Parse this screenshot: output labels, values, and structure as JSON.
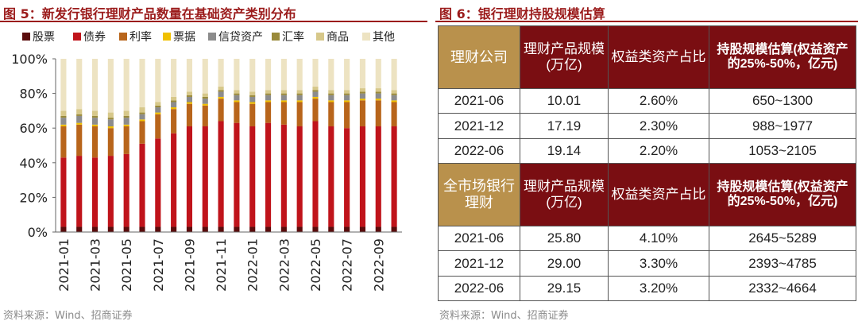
{
  "left_panel": {
    "title": "图 5：新发行银行理财产品数量在基础资产类别分布",
    "source": "资料来源：Wind、招商证券"
  },
  "right_panel": {
    "title": "图 6：银行理财持股规模估算",
    "source": "资料来源：Wind、招商证券",
    "table": {
      "groups": [
        {
          "header": [
            "理财公司",
            "理财产品规模(万亿)",
            "权益类资产占比",
            "持股规模估算(权益资产的25%-50%，亿元)"
          ],
          "rows": [
            [
              "2021-06",
              "10.01",
              "2.60%",
              "650~1300"
            ],
            [
              "2021-12",
              "17.19",
              "2.30%",
              "988~1977"
            ],
            [
              "2022-06",
              "19.14",
              "2.20%",
              "1053~2105"
            ]
          ]
        },
        {
          "header": [
            "全市场银行理财",
            "理财产品规模(万亿)",
            "权益类资产占比",
            "持股规模估算(权益资产的25%-50%，亿元)"
          ],
          "rows": [
            [
              "2021-06",
              "25.80",
              "4.10%",
              "2645~5289"
            ],
            [
              "2021-12",
              "29.00",
              "3.30%",
              "2393~4785"
            ],
            [
              "2022-06",
              "29.15",
              "3.20%",
              "2332~4664"
            ]
          ]
        }
      ]
    }
  },
  "chart_data": {
    "type": "bar",
    "stacked": true,
    "percent": true,
    "categories": [
      "2021-01",
      "2021-02",
      "2021-03",
      "2021-04",
      "2021-05",
      "2021-06",
      "2021-07",
      "2021-08",
      "2021-09",
      "2021-10",
      "2021-11",
      "2021-12",
      "2022-01",
      "2022-02",
      "2022-03",
      "2022-04",
      "2022-05",
      "2022-06",
      "2022-07",
      "2022-08",
      "2022-09",
      "2022-10"
    ],
    "x_tick_labels": [
      "2021-01",
      "2021-03",
      "2021-05",
      "2021-07",
      "2021-09",
      "2021-11",
      "2022-01",
      "2022-03",
      "2022-05",
      "2022-07",
      "2022-09"
    ],
    "y_tick_labels": [
      "0%",
      "20%",
      "40%",
      "60%",
      "80%",
      "100%"
    ],
    "ylim": [
      0,
      100
    ],
    "legend_position": "top",
    "grid": false,
    "series": [
      {
        "name": "股票",
        "color": "#5a0c0c",
        "values": [
          3,
          3,
          3,
          3,
          3,
          3,
          3,
          3,
          3,
          3,
          3,
          3,
          3,
          3,
          3,
          3,
          3,
          3,
          3,
          3,
          3,
          3
        ]
      },
      {
        "name": "债券",
        "color": "#c0141b",
        "values": [
          40,
          41,
          40,
          41,
          42,
          48,
          51,
          54,
          58,
          58,
          61,
          60,
          58,
          60,
          59,
          58,
          61,
          58,
          57,
          58,
          58,
          58
        ]
      },
      {
        "name": "利率",
        "color": "#b8651b",
        "values": [
          18,
          18,
          18,
          16,
          16,
          13,
          14,
          14,
          13,
          12,
          13,
          12,
          13,
          12,
          13,
          14,
          13,
          14,
          15,
          15,
          15,
          14
        ]
      },
      {
        "name": "票据",
        "color": "#f0c000",
        "values": [
          1,
          1,
          1,
          1,
          1,
          1,
          1,
          1,
          1,
          1,
          1,
          1,
          1,
          1,
          1,
          1,
          1,
          1,
          1,
          1,
          1,
          1
        ]
      },
      {
        "name": "信贷资产",
        "color": "#8c8c8c",
        "values": [
          4,
          4,
          4,
          4,
          4,
          3,
          3,
          3,
          3,
          3,
          3,
          3,
          3,
          3,
          3,
          3,
          3,
          3,
          3,
          3,
          3,
          3
        ]
      },
      {
        "name": "汇率",
        "color": "#9a8a3a",
        "values": [
          1,
          1,
          1,
          1,
          1,
          1,
          1,
          1,
          1,
          1,
          1,
          1,
          1,
          1,
          1,
          1,
          1,
          1,
          1,
          1,
          1,
          1
        ]
      },
      {
        "name": "商品",
        "color": "#d7c88a",
        "values": [
          3,
          3,
          3,
          3,
          3,
          3,
          2,
          2,
          2,
          2,
          2,
          2,
          2,
          2,
          2,
          2,
          2,
          2,
          2,
          2,
          2,
          2
        ]
      },
      {
        "name": "其他",
        "color": "#ede3c2",
        "values": [
          30,
          29,
          30,
          31,
          30,
          28,
          25,
          22,
          19,
          20,
          16,
          18,
          19,
          18,
          18,
          18,
          16,
          18,
          18,
          17,
          17,
          18
        ]
      }
    ]
  }
}
